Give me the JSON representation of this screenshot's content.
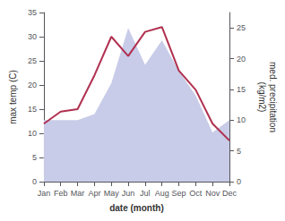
{
  "chart_data": {
    "type": "line",
    "categories": [
      "Jan",
      "Feb",
      "Mar",
      "Apr",
      "May",
      "Jun",
      "Jul",
      "Aug",
      "Sep",
      "Oct",
      "Nov",
      "Dec"
    ],
    "series": [
      {
        "type": "area",
        "axis": "y2",
        "color": "#c8cce8",
        "values": [
          10,
          10,
          10,
          11,
          16,
          25,
          19,
          23,
          18,
          14,
          8,
          10
        ]
      },
      {
        "type": "line",
        "color": "#b03050",
        "values": [
          12,
          14.5,
          15,
          22,
          30,
          26,
          31,
          32,
          23,
          19,
          12,
          8.5
        ]
      }
    ],
    "xlabel": "date (month)",
    "ylabel": "max temp (C)",
    "y2label": "med. precipitation\n(kg/m2)",
    "ylim": [
      0,
      35
    ],
    "yticks": [
      0,
      5,
      10,
      15,
      20,
      25,
      30,
      35
    ],
    "y2lim": [
      0,
      27.5
    ],
    "y2ticks": [
      0,
      5,
      10,
      15,
      20,
      25
    ],
    "grid": false
  }
}
